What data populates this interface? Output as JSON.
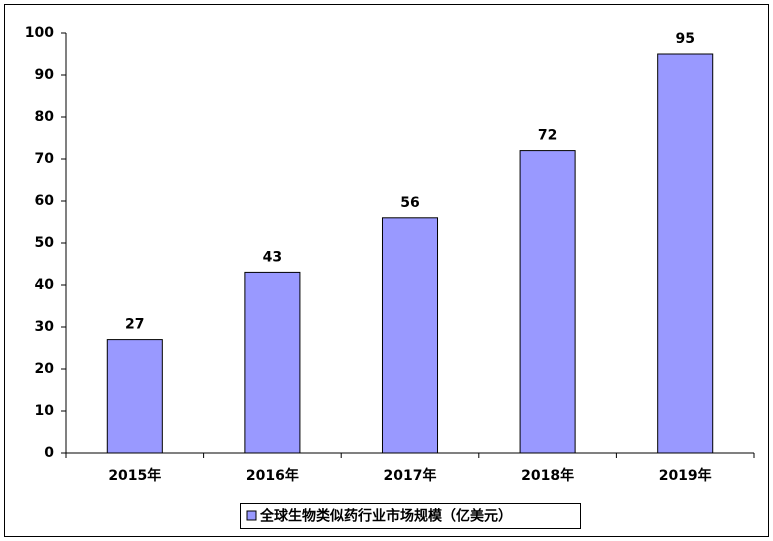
{
  "chart_data": {
    "type": "bar",
    "categories": [
      "2015年",
      "2016年",
      "2017年",
      "2018年",
      "2019年"
    ],
    "series": [
      {
        "name": "全球生物类似药行业市场规模（亿美元）",
        "color": "#9999ff",
        "values": [
          27,
          43,
          56,
          72,
          95
        ]
      }
    ],
    "ylim": [
      0,
      100
    ],
    "yticks": [
      0,
      10,
      20,
      30,
      40,
      50,
      60,
      70,
      80,
      90,
      100
    ],
    "grid": false,
    "legend": "bottom",
    "data_labels": true
  }
}
